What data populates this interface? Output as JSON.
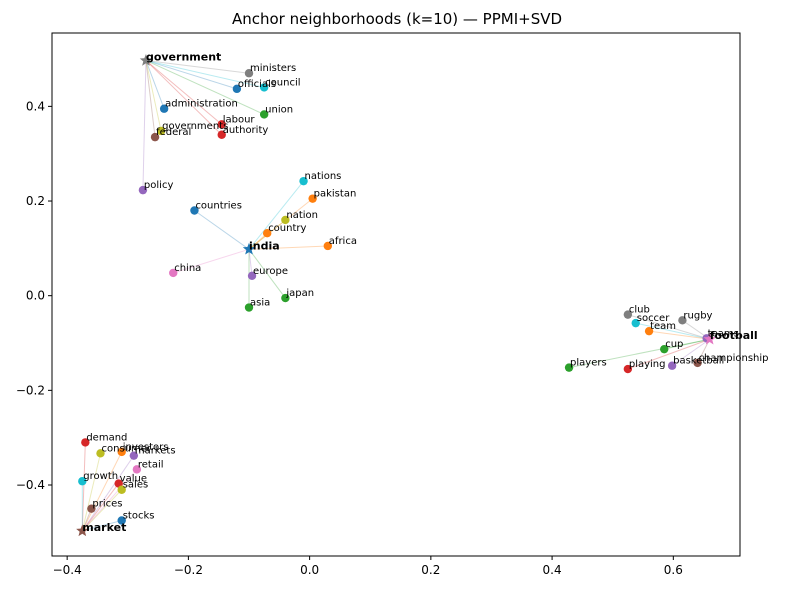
{
  "chart_data": {
    "type": "scatter",
    "title": "Anchor neighborhoods (k=10) — PPMI+SVD",
    "xlabel": "",
    "ylabel": "",
    "xlim": [
      -0.425,
      0.71
    ],
    "ylim": [
      -0.55,
      0.555
    ],
    "xticks": [
      -0.4,
      -0.2,
      0.0,
      0.2,
      0.4,
      0.6
    ],
    "xtick_labels": [
      "−0.4",
      "−0.2",
      "0.0",
      "0.2",
      "0.4",
      "0.6"
    ],
    "yticks": [
      -0.4,
      -0.2,
      0.0,
      0.2,
      0.4
    ],
    "ytick_labels": [
      "−0.4",
      "−0.2",
      "0.0",
      "0.2",
      "0.4"
    ],
    "grid": false,
    "legend": "none",
    "palette": [
      "#1f77b4",
      "#ff7f0e",
      "#2ca02c",
      "#d62728",
      "#9467bd",
      "#8c564b",
      "#e377c2",
      "#7f7f7f",
      "#bcbd22",
      "#17becf"
    ],
    "anchors": [
      {
        "word": "government",
        "x": -0.27,
        "y": 0.497,
        "color": "#7f7f7f",
        "neighbors": [
          {
            "word": "officials",
            "x": -0.12,
            "y": 0.437,
            "color": "#1f77b4"
          },
          {
            "word": "union",
            "x": -0.075,
            "y": 0.383,
            "color": "#2ca02c"
          },
          {
            "word": "authority",
            "x": -0.145,
            "y": 0.34,
            "color": "#d62728"
          },
          {
            "word": "labour",
            "x": -0.145,
            "y": 0.362,
            "color": "#d62728"
          },
          {
            "word": "policy",
            "x": -0.275,
            "y": 0.223,
            "color": "#9467bd"
          },
          {
            "word": "federal",
            "x": -0.255,
            "y": 0.335,
            "color": "#8c564b"
          },
          {
            "word": "ministers",
            "x": -0.1,
            "y": 0.47,
            "color": "#7f7f7f"
          },
          {
            "word": "governments",
            "x": -0.245,
            "y": 0.348,
            "color": "#bcbd22"
          },
          {
            "word": "council",
            "x": -0.075,
            "y": 0.44,
            "color": "#17becf"
          },
          {
            "word": "administration",
            "x": -0.24,
            "y": 0.395,
            "color": "#1f77b4"
          }
        ]
      },
      {
        "word": "india",
        "x": -0.1,
        "y": 0.098,
        "color": "#1f77b4",
        "neighbors": [
          {
            "word": "countries",
            "x": -0.19,
            "y": 0.18,
            "color": "#1f77b4"
          },
          {
            "word": "pakistan",
            "x": 0.005,
            "y": 0.205,
            "color": "#ff7f0e"
          },
          {
            "word": "asia",
            "x": -0.1,
            "y": -0.025,
            "color": "#2ca02c"
          },
          {
            "word": "japan",
            "x": -0.04,
            "y": -0.005,
            "color": "#2ca02c"
          },
          {
            "word": "europe",
            "x": -0.095,
            "y": 0.042,
            "color": "#9467bd"
          },
          {
            "word": "country",
            "x": -0.07,
            "y": 0.132,
            "color": "#ff7f0e"
          },
          {
            "word": "china",
            "x": -0.225,
            "y": 0.048,
            "color": "#e377c2"
          },
          {
            "word": "nation",
            "x": -0.04,
            "y": 0.16,
            "color": "#bcbd22"
          },
          {
            "word": "nations",
            "x": -0.01,
            "y": 0.242,
            "color": "#17becf"
          },
          {
            "word": "africa",
            "x": 0.03,
            "y": 0.105,
            "color": "#ff7f0e"
          }
        ]
      },
      {
        "word": "football",
        "x": 0.66,
        "y": -0.092,
        "color": "#e377c2",
        "neighbors": [
          {
            "word": "club",
            "x": 0.525,
            "y": -0.04,
            "color": "#7f7f7f"
          },
          {
            "word": "soccer",
            "x": 0.538,
            "y": -0.058,
            "color": "#17becf"
          },
          {
            "word": "team",
            "x": 0.56,
            "y": -0.075,
            "color": "#ff7f0e"
          },
          {
            "word": "rugby",
            "x": 0.615,
            "y": -0.052,
            "color": "#7f7f7f"
          },
          {
            "word": "teams",
            "x": 0.655,
            "y": -0.09,
            "color": "#9467bd"
          },
          {
            "word": "cup",
            "x": 0.585,
            "y": -0.113,
            "color": "#2ca02c"
          },
          {
            "word": "championship",
            "x": 0.64,
            "y": -0.142,
            "color": "#8c564b"
          },
          {
            "word": "basketball",
            "x": 0.598,
            "y": -0.148,
            "color": "#9467bd"
          },
          {
            "word": "playing",
            "x": 0.525,
            "y": -0.155,
            "color": "#d62728"
          },
          {
            "word": "players",
            "x": 0.428,
            "y": -0.152,
            "color": "#2ca02c"
          }
        ]
      },
      {
        "word": "market",
        "x": -0.375,
        "y": -0.497,
        "color": "#8c564b",
        "neighbors": [
          {
            "word": "demand",
            "x": -0.37,
            "y": -0.31,
            "color": "#d62728"
          },
          {
            "word": "consumer",
            "x": -0.345,
            "y": -0.333,
            "color": "#bcbd22"
          },
          {
            "word": "investors",
            "x": -0.31,
            "y": -0.33,
            "color": "#ff7f0e"
          },
          {
            "word": "markets",
            "x": -0.29,
            "y": -0.338,
            "color": "#9467bd"
          },
          {
            "word": "retail",
            "x": -0.285,
            "y": -0.367,
            "color": "#e377c2"
          },
          {
            "word": "growth",
            "x": -0.375,
            "y": -0.392,
            "color": "#17becf"
          },
          {
            "word": "value",
            "x": -0.315,
            "y": -0.397,
            "color": "#d62728"
          },
          {
            "word": "sales",
            "x": -0.31,
            "y": -0.41,
            "color": "#bcbd22"
          },
          {
            "word": "prices",
            "x": -0.36,
            "y": -0.45,
            "color": "#8c564b"
          },
          {
            "word": "stocks",
            "x": -0.31,
            "y": -0.475,
            "color": "#1f77b4"
          }
        ]
      }
    ]
  }
}
